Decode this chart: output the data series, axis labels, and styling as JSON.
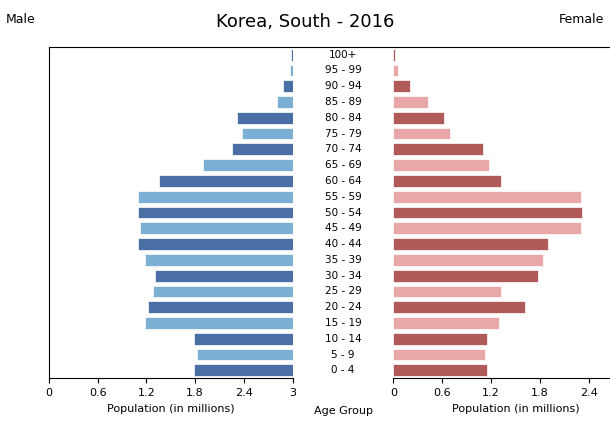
{
  "title": "Korea, South - 2016",
  "male_label": "Male",
  "female_label": "Female",
  "xlabel_left": "Population (in millions)",
  "xlabel_center": "Age Group",
  "xlabel_right": "Population (in millions)",
  "age_groups": [
    "0 - 4",
    "5 - 9",
    "10 - 14",
    "15 - 19",
    "20 - 24",
    "25 - 29",
    "30 - 34",
    "35 - 39",
    "40 - 44",
    "45 - 49",
    "50 - 54",
    "55 - 59",
    "60 - 64",
    "65 - 69",
    "70 - 74",
    "75 - 79",
    "80 - 84",
    "85 - 89",
    "90 - 94",
    "95 - 99",
    "100+"
  ],
  "male_values": [
    1.22,
    1.18,
    1.22,
    1.82,
    1.78,
    1.72,
    1.7,
    1.82,
    1.9,
    1.88,
    1.9,
    1.9,
    1.65,
    1.1,
    0.75,
    0.62,
    0.68,
    0.2,
    0.12,
    0.04,
    0.02
  ],
  "female_values": [
    1.15,
    1.12,
    1.15,
    1.3,
    1.62,
    1.32,
    1.78,
    1.84,
    1.9,
    2.3,
    2.32,
    2.3,
    1.32,
    1.18,
    1.1,
    0.7,
    0.62,
    0.42,
    0.2,
    0.06,
    0.02
  ],
  "male_colors": [
    "#4a6fa5",
    "#7bafd4",
    "#4a6fa5",
    "#7bafd4",
    "#4a6fa5",
    "#7bafd4",
    "#4a6fa5",
    "#7bafd4",
    "#4a6fa5",
    "#7bafd4",
    "#4a6fa5",
    "#7bafd4",
    "#4a6fa5",
    "#7bafd4",
    "#4a6fa5",
    "#7bafd4",
    "#4a6fa5",
    "#7bafd4",
    "#4a6fa5",
    "#7bafd4",
    "#4a6fa5"
  ],
  "female_colors": [
    "#b05a5a",
    "#e8a8a8",
    "#b05a5a",
    "#e8a8a8",
    "#b05a5a",
    "#e8a8a8",
    "#b05a5a",
    "#e8a8a8",
    "#b05a5a",
    "#e8a8a8",
    "#b05a5a",
    "#e8a8a8",
    "#b05a5a",
    "#e8a8a8",
    "#b05a5a",
    "#e8a8a8",
    "#b05a5a",
    "#e8a8a8",
    "#b05a5a",
    "#e8a8a8",
    "#b05a5a"
  ],
  "xlim": 3.0,
  "xticks": [
    0,
    0.6,
    1.2,
    1.8,
    2.4,
    3.0
  ],
  "xtick_labels_left": [
    "3",
    "2.4",
    "1.8",
    "1.2",
    "0.6",
    "0"
  ],
  "xtick_labels_right": [
    "0",
    "0.6",
    "1.2",
    "1.8",
    "2.4",
    "3"
  ],
  "bg_color": "#ffffff",
  "bar_height": 0.75,
  "title_fontsize": 13,
  "label_fontsize": 9,
  "age_fontsize": 7.5,
  "tick_fontsize": 8,
  "xlabel_fontsize": 8
}
